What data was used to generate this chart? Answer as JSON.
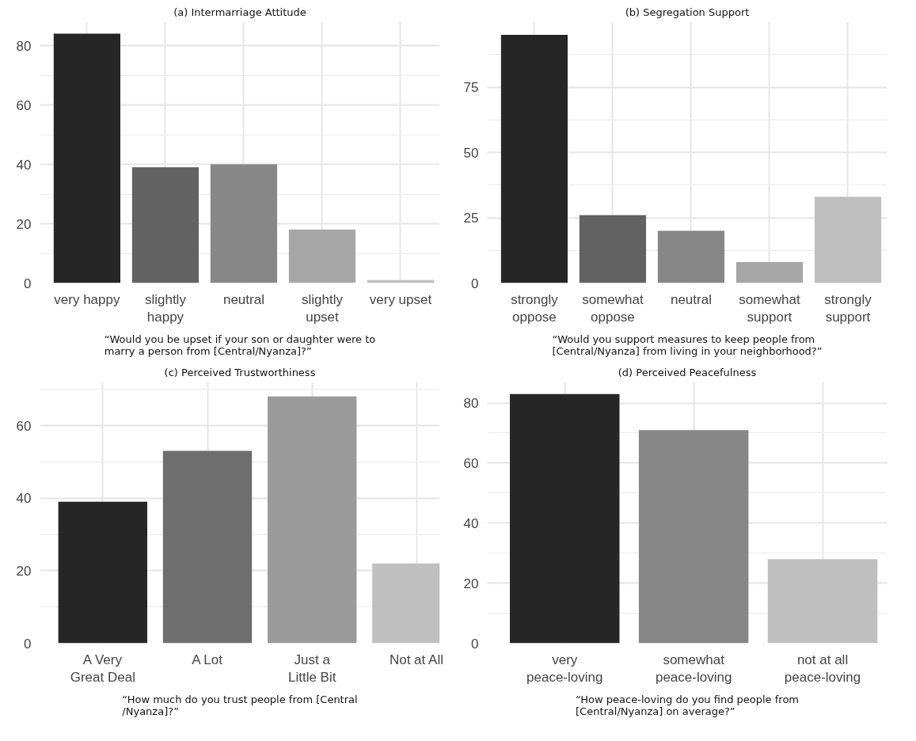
{
  "chart_data": [
    {
      "type": "bar",
      "title": "(a) Intermarriage Attitude",
      "categories": [
        "very happy",
        "slightly happy",
        "neutral",
        "slightly upset",
        "very upset"
      ],
      "values": [
        84,
        39,
        40,
        18,
        1
      ],
      "colors": [
        "#262626",
        "#626262",
        "#878787",
        "#a6a6a6",
        "#bfbfbf"
      ],
      "ylim": [
        0,
        88
      ],
      "yticks": [
        0,
        20,
        40,
        60,
        80
      ],
      "grid": true,
      "annotations": [
        "“Would you be upset if your son or daughter were to marry a person from [Central/Nyanza]?”"
      ]
    },
    {
      "type": "bar",
      "title": "(b) Segregation Support",
      "categories": [
        "strongly oppose",
        "somewhat oppose",
        "neutral",
        "somewhat support",
        "strongly support"
      ],
      "values": [
        95,
        26,
        20,
        8,
        33
      ],
      "colors": [
        "#262626",
        "#626262",
        "#878787",
        "#a6a6a6",
        "#bfbfbf"
      ],
      "ylim": [
        0,
        100
      ],
      "yticks": [
        0,
        25,
        50,
        75
      ],
      "grid": true,
      "annotations": [
        "“Would you support measures to keep people from [Central/Nyanza] from living in your neighborhood?”"
      ]
    },
    {
      "type": "bar",
      "title": "(c) Perceived Trustworthiness",
      "categories": [
        "A Very Great Deal",
        "A Lot",
        "Just a Little Bit",
        "Not at All"
      ],
      "values": [
        39,
        53,
        68,
        22
      ],
      "colors": [
        "#262626",
        "#6e6e6e",
        "#9b9b9b",
        "#bfbfbf"
      ],
      "ylim": [
        0,
        72
      ],
      "yticks": [
        0,
        20,
        40,
        60
      ],
      "grid": true,
      "annotations": [
        "“How much do you trust people from [Central /Nyanza]?”"
      ]
    },
    {
      "type": "bar",
      "title": "(d) Perceived Peacefulness",
      "categories": [
        "very peace-loving",
        "somewhat peace-loving",
        "not at all peace-loving"
      ],
      "values": [
        83,
        71,
        28
      ],
      "colors": [
        "#262626",
        "#878787",
        "#bfbfbf"
      ],
      "ylim": [
        0,
        87
      ],
      "yticks": [
        0,
        20,
        40,
        60,
        80
      ],
      "grid": true,
      "annotations": [
        "“How peace-loving do you find people from [Central/Nyanza] on average?”"
      ]
    }
  ]
}
